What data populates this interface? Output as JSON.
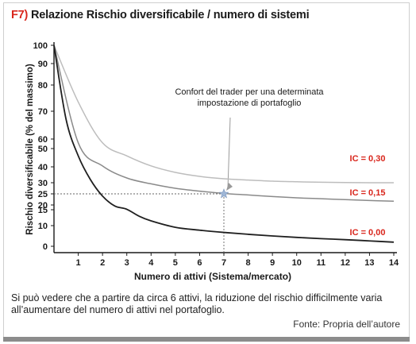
{
  "header": {
    "figure_id": "F7)",
    "title": "Relazione Rischio diversificabile / numero di sistemi"
  },
  "caption": "Si può vedere che a partire da circa 6 attivi, la riduzione del rischio difficilmente varia all’aumentare del numero di attivi nel portafoglio.",
  "source": "Fonte: Propria dell’autore",
  "colors": {
    "accent": "#d9261c",
    "series_ic_030": "#bdbdbd",
    "series_ic_015": "#8a8a8a",
    "series_ic_000": "#1f1f1f",
    "marker": "#9fb6d6"
  },
  "chart_data": {
    "type": "line",
    "title": "Relazione Rischio diversificabile / numero di sistemi",
    "xlabel": "Numero di attivi (Sistema/mercato)",
    "ylabel": "Rischio diversificabile (% del massimo)",
    "xlim": [
      0,
      14
    ],
    "ylim": [
      0,
      100
    ],
    "x_ticks": [
      "1",
      "2",
      "3",
      "4",
      "5",
      "6",
      "7",
      "8",
      "9",
      "10",
      "11",
      "12",
      "13",
      "14"
    ],
    "y_ticks": [
      "0",
      "10",
      "15",
      "20",
      "25",
      "30",
      "40",
      "50",
      "60",
      "70",
      "80",
      "90",
      "100"
    ],
    "y_scale": "nonlinear (sqrt-like spacing)",
    "grid": false,
    "series": [
      {
        "name": "IC = 0,30",
        "x": [
          0,
          1,
          2,
          3,
          4,
          5,
          6,
          7,
          8,
          9,
          10,
          11,
          12,
          13,
          14
        ],
        "values": [
          100,
          73.5,
          56,
          46,
          40.5,
          36.5,
          34,
          32.5,
          31.7,
          31,
          30.6,
          30.3,
          30.1,
          30,
          30
        ]
      },
      {
        "name": "IC = 0,15",
        "x": [
          0,
          1,
          2,
          3,
          4,
          5,
          6,
          7,
          8,
          9,
          10,
          11,
          12,
          13,
          14
        ],
        "values": [
          100,
          56,
          40.5,
          33,
          29.5,
          27.5,
          26.2,
          25.2,
          24.5,
          23.8,
          23.2,
          22.8,
          22.4,
          22,
          21.7
        ]
      },
      {
        "name": "IC = 0,00",
        "x": [
          0,
          0.5,
          1,
          1.5,
          2,
          2.5,
          3,
          3.5,
          4,
          5,
          6,
          7,
          8,
          9,
          10,
          11,
          12,
          13,
          14
        ],
        "values": [
          100,
          67,
          46,
          32,
          24,
          19,
          15.5,
          13,
          11.5,
          9.2,
          7.8,
          6.7,
          5.8,
          5,
          4.3,
          3.7,
          3.2,
          2.6,
          2
        ]
      }
    ],
    "highlight_point": {
      "x": 7,
      "y": 25
    },
    "annotation": "Confort del trader per una determinata impostazione di portafoglio"
  }
}
